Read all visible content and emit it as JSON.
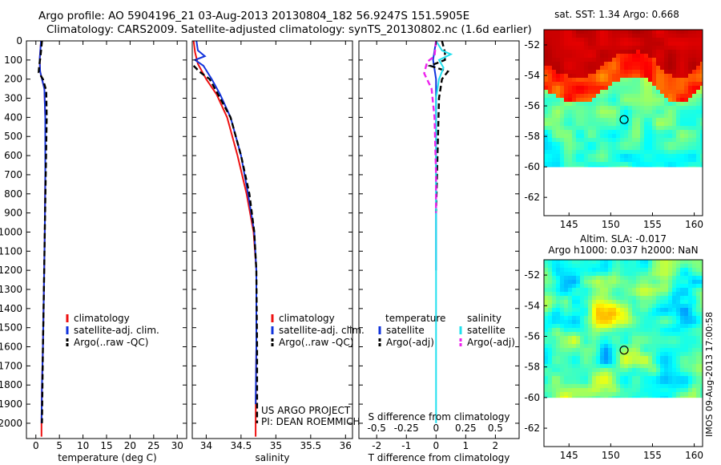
{
  "header": {
    "line1": "Argo profile: AO 5904196_21 03-Aug-2013 20130804_182 56.9247S 151.5905E",
    "line2": "Climatology: CARS2009. Satellite-adjusted climatology: synTS_20130802.nc (1.6d earlier)"
  },
  "colors": {
    "climatology": "#ee1111",
    "satellite": "#1133dd",
    "argo": "#000000",
    "sal_satellite": "#22e0ee",
    "sal_argo": "#ee22ee"
  },
  "chart_data": [
    {
      "id": "temperature",
      "type": "line",
      "xlabel": "temperature (deg C)",
      "ylabel": "",
      "xlim": [
        -2,
        32
      ],
      "ylim": [
        2080,
        0
      ],
      "xticks": [
        0,
        5,
        10,
        15,
        20,
        25,
        30
      ],
      "yticks": [
        0,
        100,
        200,
        300,
        400,
        500,
        600,
        700,
        800,
        900,
        1000,
        1100,
        1200,
        1300,
        1400,
        1500,
        1600,
        1700,
        1800,
        1900,
        2000
      ],
      "legend": [
        "climatology",
        "satellite-adj. clim.",
        "Argo(..raw -QC)"
      ],
      "legend_position": "center-right",
      "series": [
        {
          "name": "climatology",
          "style": "solid",
          "points": [
            [
              1.1,
              0
            ],
            [
              0.8,
              100
            ],
            [
              0.9,
              160
            ],
            [
              1.3,
              200
            ],
            [
              1.8,
              250
            ],
            [
              2.0,
              400
            ],
            [
              2.0,
              700
            ],
            [
              1.9,
              1000
            ],
            [
              1.7,
              1300
            ],
            [
              1.5,
              1600
            ],
            [
              1.3,
              1800
            ],
            [
              1.2,
              2000
            ],
            [
              1.2,
              2070
            ]
          ]
        },
        {
          "name": "satellite-adj. clim.",
          "style": "solid",
          "points": [
            [
              1.1,
              0
            ],
            [
              0.8,
              100
            ],
            [
              0.9,
              160
            ],
            [
              1.3,
              200
            ],
            [
              1.8,
              250
            ],
            [
              2.0,
              400
            ],
            [
              2.0,
              700
            ],
            [
              1.9,
              1000
            ],
            [
              1.7,
              1300
            ],
            [
              1.5,
              1600
            ],
            [
              1.3,
              1800
            ],
            [
              1.2,
              2000
            ]
          ]
        },
        {
          "name": "Argo(..raw -QC)",
          "style": "dashed",
          "points": [
            [
              1.3,
              0
            ],
            [
              1.0,
              80
            ],
            [
              0.7,
              130
            ],
            [
              0.6,
              165
            ],
            [
              1.5,
              200
            ],
            [
              2.2,
              260
            ],
            [
              2.3,
              400
            ],
            [
              2.1,
              700
            ],
            [
              1.9,
              1000
            ],
            [
              1.7,
              1300
            ],
            [
              1.5,
              1600
            ],
            [
              1.4,
              1800
            ],
            [
              1.3,
              2000
            ]
          ]
        }
      ]
    },
    {
      "id": "salinity",
      "type": "line",
      "xlabel": "salinity",
      "ylabel": "",
      "xlim": [
        33.8,
        36.1
      ],
      "ylim": [
        2080,
        0
      ],
      "xticks": [
        34,
        34.5,
        35,
        35.5,
        36
      ],
      "xticklabels": [
        "34",
        "34.5",
        "35",
        "35.5",
        "36"
      ],
      "legend": [
        "climatology",
        "satellite-adj. clim.",
        "Argo(..raw -QC)"
      ],
      "legend_position": "center-right",
      "annotation": [
        "US ARGO PROJECT",
        "PI: DEAN ROEMMICH"
      ],
      "series": [
        {
          "name": "climatology",
          "style": "solid",
          "points": [
            [
              33.82,
              0
            ],
            [
              33.84,
              60
            ],
            [
              33.88,
              120
            ],
            [
              34.0,
              200
            ],
            [
              34.15,
              280
            ],
            [
              34.3,
              400
            ],
            [
              34.45,
              600
            ],
            [
              34.58,
              800
            ],
            [
              34.68,
              1000
            ],
            [
              34.72,
              1200
            ],
            [
              34.72,
              1600
            ],
            [
              34.71,
              2000
            ],
            [
              34.71,
              2070
            ]
          ]
        },
        {
          "name": "satellite-adj. clim.",
          "style": "solid",
          "points": [
            [
              33.86,
              0
            ],
            [
              33.88,
              50
            ],
            [
              33.98,
              80
            ],
            [
              33.84,
              100
            ],
            [
              33.96,
              130
            ],
            [
              34.08,
              200
            ],
            [
              34.2,
              280
            ],
            [
              34.35,
              400
            ],
            [
              34.5,
              600
            ],
            [
              34.6,
              800
            ],
            [
              34.69,
              1000
            ],
            [
              34.72,
              1200
            ],
            [
              34.72,
              1600
            ],
            [
              34.71,
              1900
            ]
          ]
        },
        {
          "name": "Argo(..raw -QC)",
          "style": "dashed",
          "points": [
            [
              33.82,
              130
            ],
            [
              33.9,
              160
            ],
            [
              34.05,
              200
            ],
            [
              34.2,
              300
            ],
            [
              34.35,
              400
            ],
            [
              34.5,
              600
            ],
            [
              34.62,
              800
            ],
            [
              34.69,
              1000
            ],
            [
              34.72,
              1200
            ],
            [
              34.73,
              1600
            ],
            [
              34.73,
              2000
            ]
          ]
        }
      ]
    },
    {
      "id": "difference",
      "type": "line",
      "xlabel": "T difference from climatology",
      "xlabel2": "S difference from climatology",
      "xlim": [
        -2.6,
        2.8
      ],
      "ylim": [
        2080,
        0
      ],
      "xticks": [
        -2,
        -1,
        0,
        1,
        2
      ],
      "sticks": [
        -0.5,
        -0.25,
        0,
        0.25,
        0.5
      ],
      "sticklabels": [
        "-0.5",
        "-0.25",
        "0",
        "0.25",
        "0.5"
      ],
      "legend_title_t": "temperature",
      "legend_title_s": "salinity",
      "legend_t": [
        "satellite",
        "Argo(-adj)"
      ],
      "legend_s": [
        "satellite",
        "Argo(-adj)"
      ],
      "series": [
        {
          "name": "temperature satellite",
          "style": "solid",
          "points": [
            [
              0,
              0
            ],
            [
              -0.1,
              100
            ],
            [
              0,
              200
            ],
            [
              0,
              400
            ],
            [
              0,
              700
            ],
            [
              0,
              1000
            ],
            [
              0,
              1200
            ]
          ]
        },
        {
          "name": "temperature Argo(-adj)",
          "style": "dashed",
          "points": [
            [
              0.2,
              0
            ],
            [
              0.3,
              60
            ],
            [
              0.3,
              100
            ],
            [
              -0.2,
              130
            ],
            [
              0.4,
              160
            ],
            [
              0.2,
              200
            ],
            [
              0.1,
              300
            ],
            [
              0.05,
              600
            ],
            [
              0,
              900
            ]
          ]
        },
        {
          "name": "salinity satellite",
          "style": "solid",
          "points": [
            [
              0,
              0
            ],
            [
              0.2,
              50
            ],
            [
              0.5,
              70
            ],
            [
              0.1,
              100
            ],
            [
              0.25,
              140
            ],
            [
              0.1,
              200
            ],
            [
              0,
              300
            ],
            [
              0,
              700
            ],
            [
              0,
              1100
            ],
            [
              0,
              1500
            ],
            [
              0,
              1900
            ],
            [
              0,
              2000
            ]
          ]
        },
        {
          "name": "salinity Argo(-adj)",
          "style": "dashed",
          "points": [
            [
              0,
              0
            ],
            [
              -0.05,
              80
            ],
            [
              -0.3,
              110
            ],
            [
              -0.4,
              170
            ],
            [
              -0.15,
              250
            ],
            [
              -0.05,
              400
            ],
            [
              0,
              700
            ],
            [
              0,
              900
            ]
          ]
        }
      ]
    },
    {
      "id": "sst-map",
      "type": "heatmap",
      "title": "sat. SST: 1.34 Argo: 0.668",
      "xlim": [
        142,
        161
      ],
      "ylim": [
        -63.2,
        -51
      ],
      "xticks": [
        145,
        150,
        155,
        160
      ],
      "yticks": [
        -52,
        -54,
        -56,
        -58,
        -60,
        -62
      ],
      "marker": [
        151.6,
        -56.9
      ]
    },
    {
      "id": "sla-map",
      "type": "heatmap",
      "title": "Altim. SLA: -0.017",
      "title2": "Argo h1000: 0.037 h2000: NaN",
      "xlim": [
        142,
        161
      ],
      "ylim": [
        -63.2,
        -51
      ],
      "xticks": [
        145,
        150,
        155,
        160
      ],
      "yticks": [
        -52,
        -54,
        -56,
        -58,
        -60,
        -62
      ],
      "marker": [
        151.6,
        -56.9
      ]
    }
  ],
  "footer": {
    "stamp": "IMOS 09-Aug-2013 17:00:58"
  }
}
